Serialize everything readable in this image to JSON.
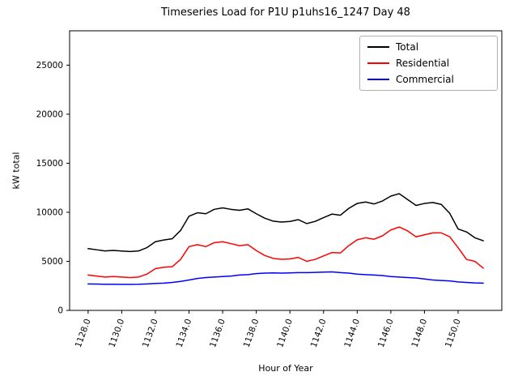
{
  "title": "Timeseries Load for P1U p1uhs16_1247  Day 48",
  "chart_data": {
    "type": "line",
    "title": "Timeseries Load for P1U p1uhs16_1247  Day 48",
    "xlabel": "Hour of Year",
    "ylabel": "kW total",
    "xlim": [
      1126.9,
      1152.6
    ],
    "ylim": [
      0,
      28500
    ],
    "grid": false,
    "legend_position": "upper right",
    "xticks": [
      1128,
      1130,
      1132,
      1134,
      1136,
      1138,
      1140,
      1142,
      1144,
      1146,
      1148,
      1150
    ],
    "xtick_labels": [
      "1128.0",
      "1130.0",
      "1132.0",
      "1134.0",
      "1136.0",
      "1138.0",
      "1140.0",
      "1142.0",
      "1144.0",
      "1146.0",
      "1148.0",
      "1150.0"
    ],
    "yticks": [
      0,
      5000,
      10000,
      15000,
      20000,
      25000
    ],
    "ytick_labels": [
      "0",
      "5000",
      "10000",
      "15000",
      "20000",
      "25000"
    ],
    "x": [
      1128.0,
      1128.5,
      1129.0,
      1129.5,
      1130.0,
      1130.5,
      1131.0,
      1131.5,
      1132.0,
      1132.5,
      1133.0,
      1133.5,
      1134.0,
      1134.5,
      1135.0,
      1135.5,
      1136.0,
      1136.5,
      1137.0,
      1137.5,
      1138.0,
      1138.5,
      1139.0,
      1139.5,
      1140.0,
      1140.5,
      1141.0,
      1141.5,
      1142.0,
      1142.5,
      1143.0,
      1143.5,
      1144.0,
      1144.5,
      1145.0,
      1145.5,
      1146.0,
      1146.5,
      1147.0,
      1147.5,
      1148.0,
      1148.5,
      1149.0,
      1149.5,
      1150.0,
      1150.5,
      1151.0,
      1151.5
    ],
    "series": [
      {
        "name": "Total",
        "color": "#000000",
        "values": [
          6300,
          6180,
          6060,
          6110,
          6050,
          6000,
          6060,
          6400,
          7000,
          7180,
          7300,
          8150,
          9600,
          9950,
          9850,
          10300,
          10450,
          10300,
          10200,
          10350,
          9850,
          9400,
          9100,
          9000,
          9070,
          9250,
          8850,
          9070,
          9450,
          9820,
          9700,
          10400,
          10900,
          11050,
          10850,
          11150,
          11650,
          11900,
          11300,
          10700,
          10900,
          11000,
          10800,
          9900,
          8300,
          8000,
          7400,
          7100
        ]
      },
      {
        "name": "Residential",
        "color": "#ff0000",
        "values": [
          3600,
          3500,
          3400,
          3450,
          3400,
          3350,
          3400,
          3700,
          4250,
          4400,
          4450,
          5200,
          6500,
          6700,
          6500,
          6900,
          7000,
          6800,
          6600,
          6700,
          6100,
          5600,
          5300,
          5200,
          5250,
          5400,
          5000,
          5200,
          5550,
          5900,
          5850,
          6600,
          7200,
          7400,
          7250,
          7600,
          8200,
          8500,
          8100,
          7500,
          7700,
          7900,
          7900,
          7500,
          6400,
          5200,
          5000,
          4300
        ]
      },
      {
        "name": "Commercial",
        "color": "#0000ff",
        "values": [
          2700,
          2680,
          2660,
          2660,
          2650,
          2650,
          2660,
          2700,
          2750,
          2780,
          2850,
          2950,
          3100,
          3250,
          3350,
          3400,
          3450,
          3500,
          3600,
          3650,
          3750,
          3800,
          3820,
          3800,
          3820,
          3850,
          3850,
          3870,
          3900,
          3920,
          3850,
          3800,
          3700,
          3650,
          3600,
          3550,
          3450,
          3400,
          3350,
          3300,
          3200,
          3100,
          3050,
          3000,
          2900,
          2850,
          2800,
          2780
        ]
      }
    ]
  }
}
